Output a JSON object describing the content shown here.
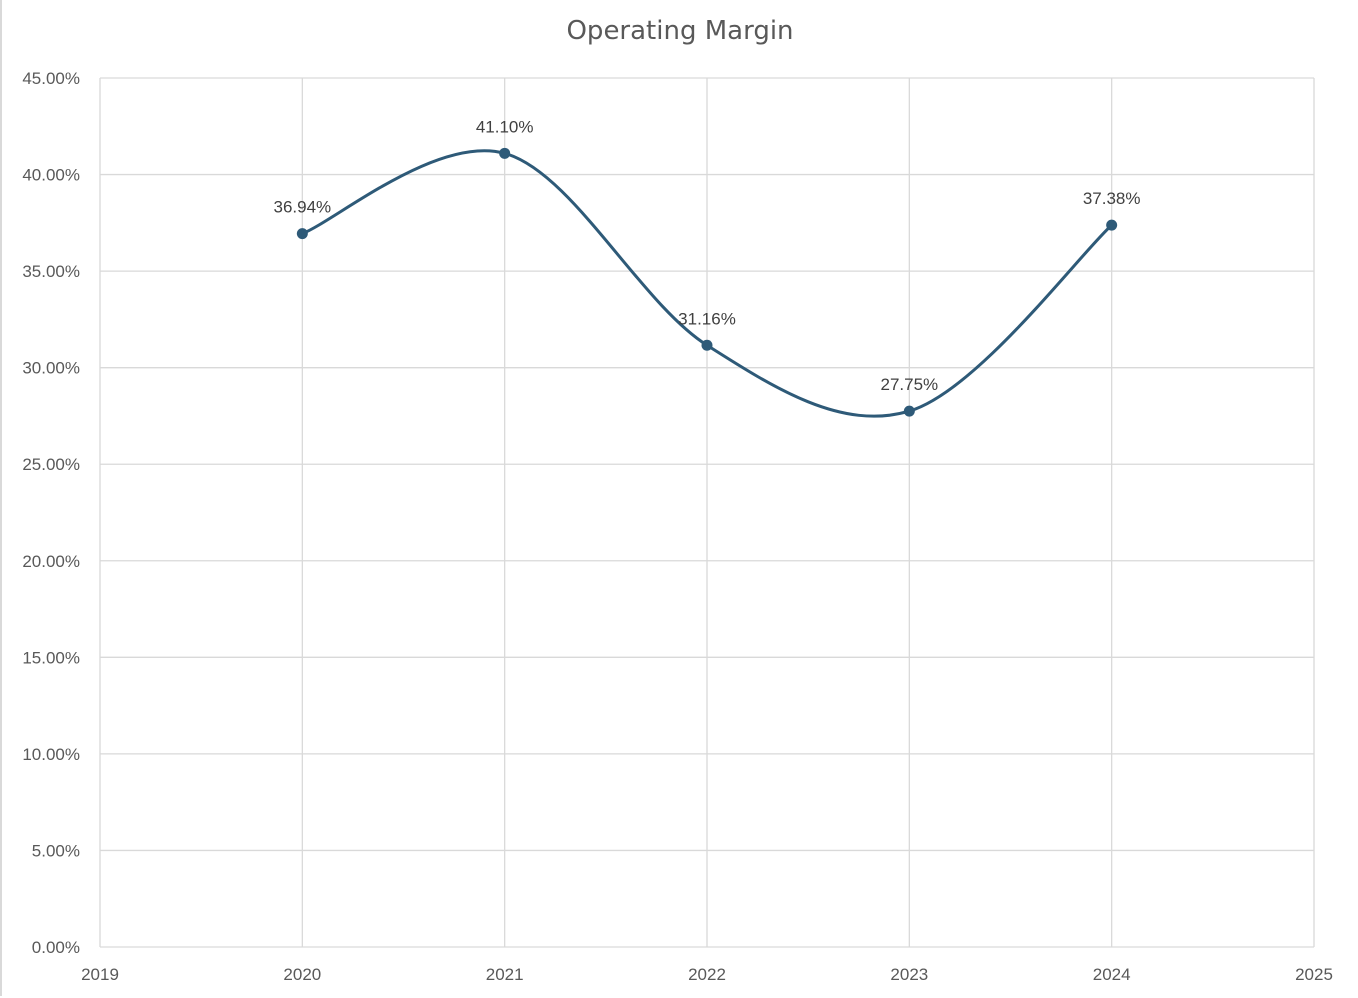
{
  "chart_data": {
    "type": "scatter",
    "title": "Operating Margin",
    "xlabel": "",
    "ylabel": "",
    "x": [
      2020,
      2021,
      2022,
      2023,
      2024
    ],
    "y": [
      36.94,
      41.1,
      31.16,
      27.75,
      37.38
    ],
    "data_labels": [
      "36.94%",
      "41.10%",
      "31.16%",
      "27.75%",
      "37.38%"
    ],
    "xlim": [
      2019,
      2025
    ],
    "ylim": [
      0,
      45
    ],
    "x_ticks": [
      "2019",
      "2020",
      "2021",
      "2022",
      "2023",
      "2024",
      "2025"
    ],
    "y_ticks": [
      "0.00%",
      "5.00%",
      "10.00%",
      "15.00%",
      "20.00%",
      "25.00%",
      "30.00%",
      "35.00%",
      "40.00%",
      "45.00%"
    ],
    "y_tick_values": [
      0,
      5,
      10,
      15,
      20,
      25,
      30,
      35,
      40,
      45
    ],
    "x_tick_values": [
      2019,
      2020,
      2021,
      2022,
      2023,
      2024,
      2025
    ],
    "line": "smoothed",
    "markers": true,
    "grid": true,
    "legend": "none",
    "series_color": "#2e5a78"
  }
}
